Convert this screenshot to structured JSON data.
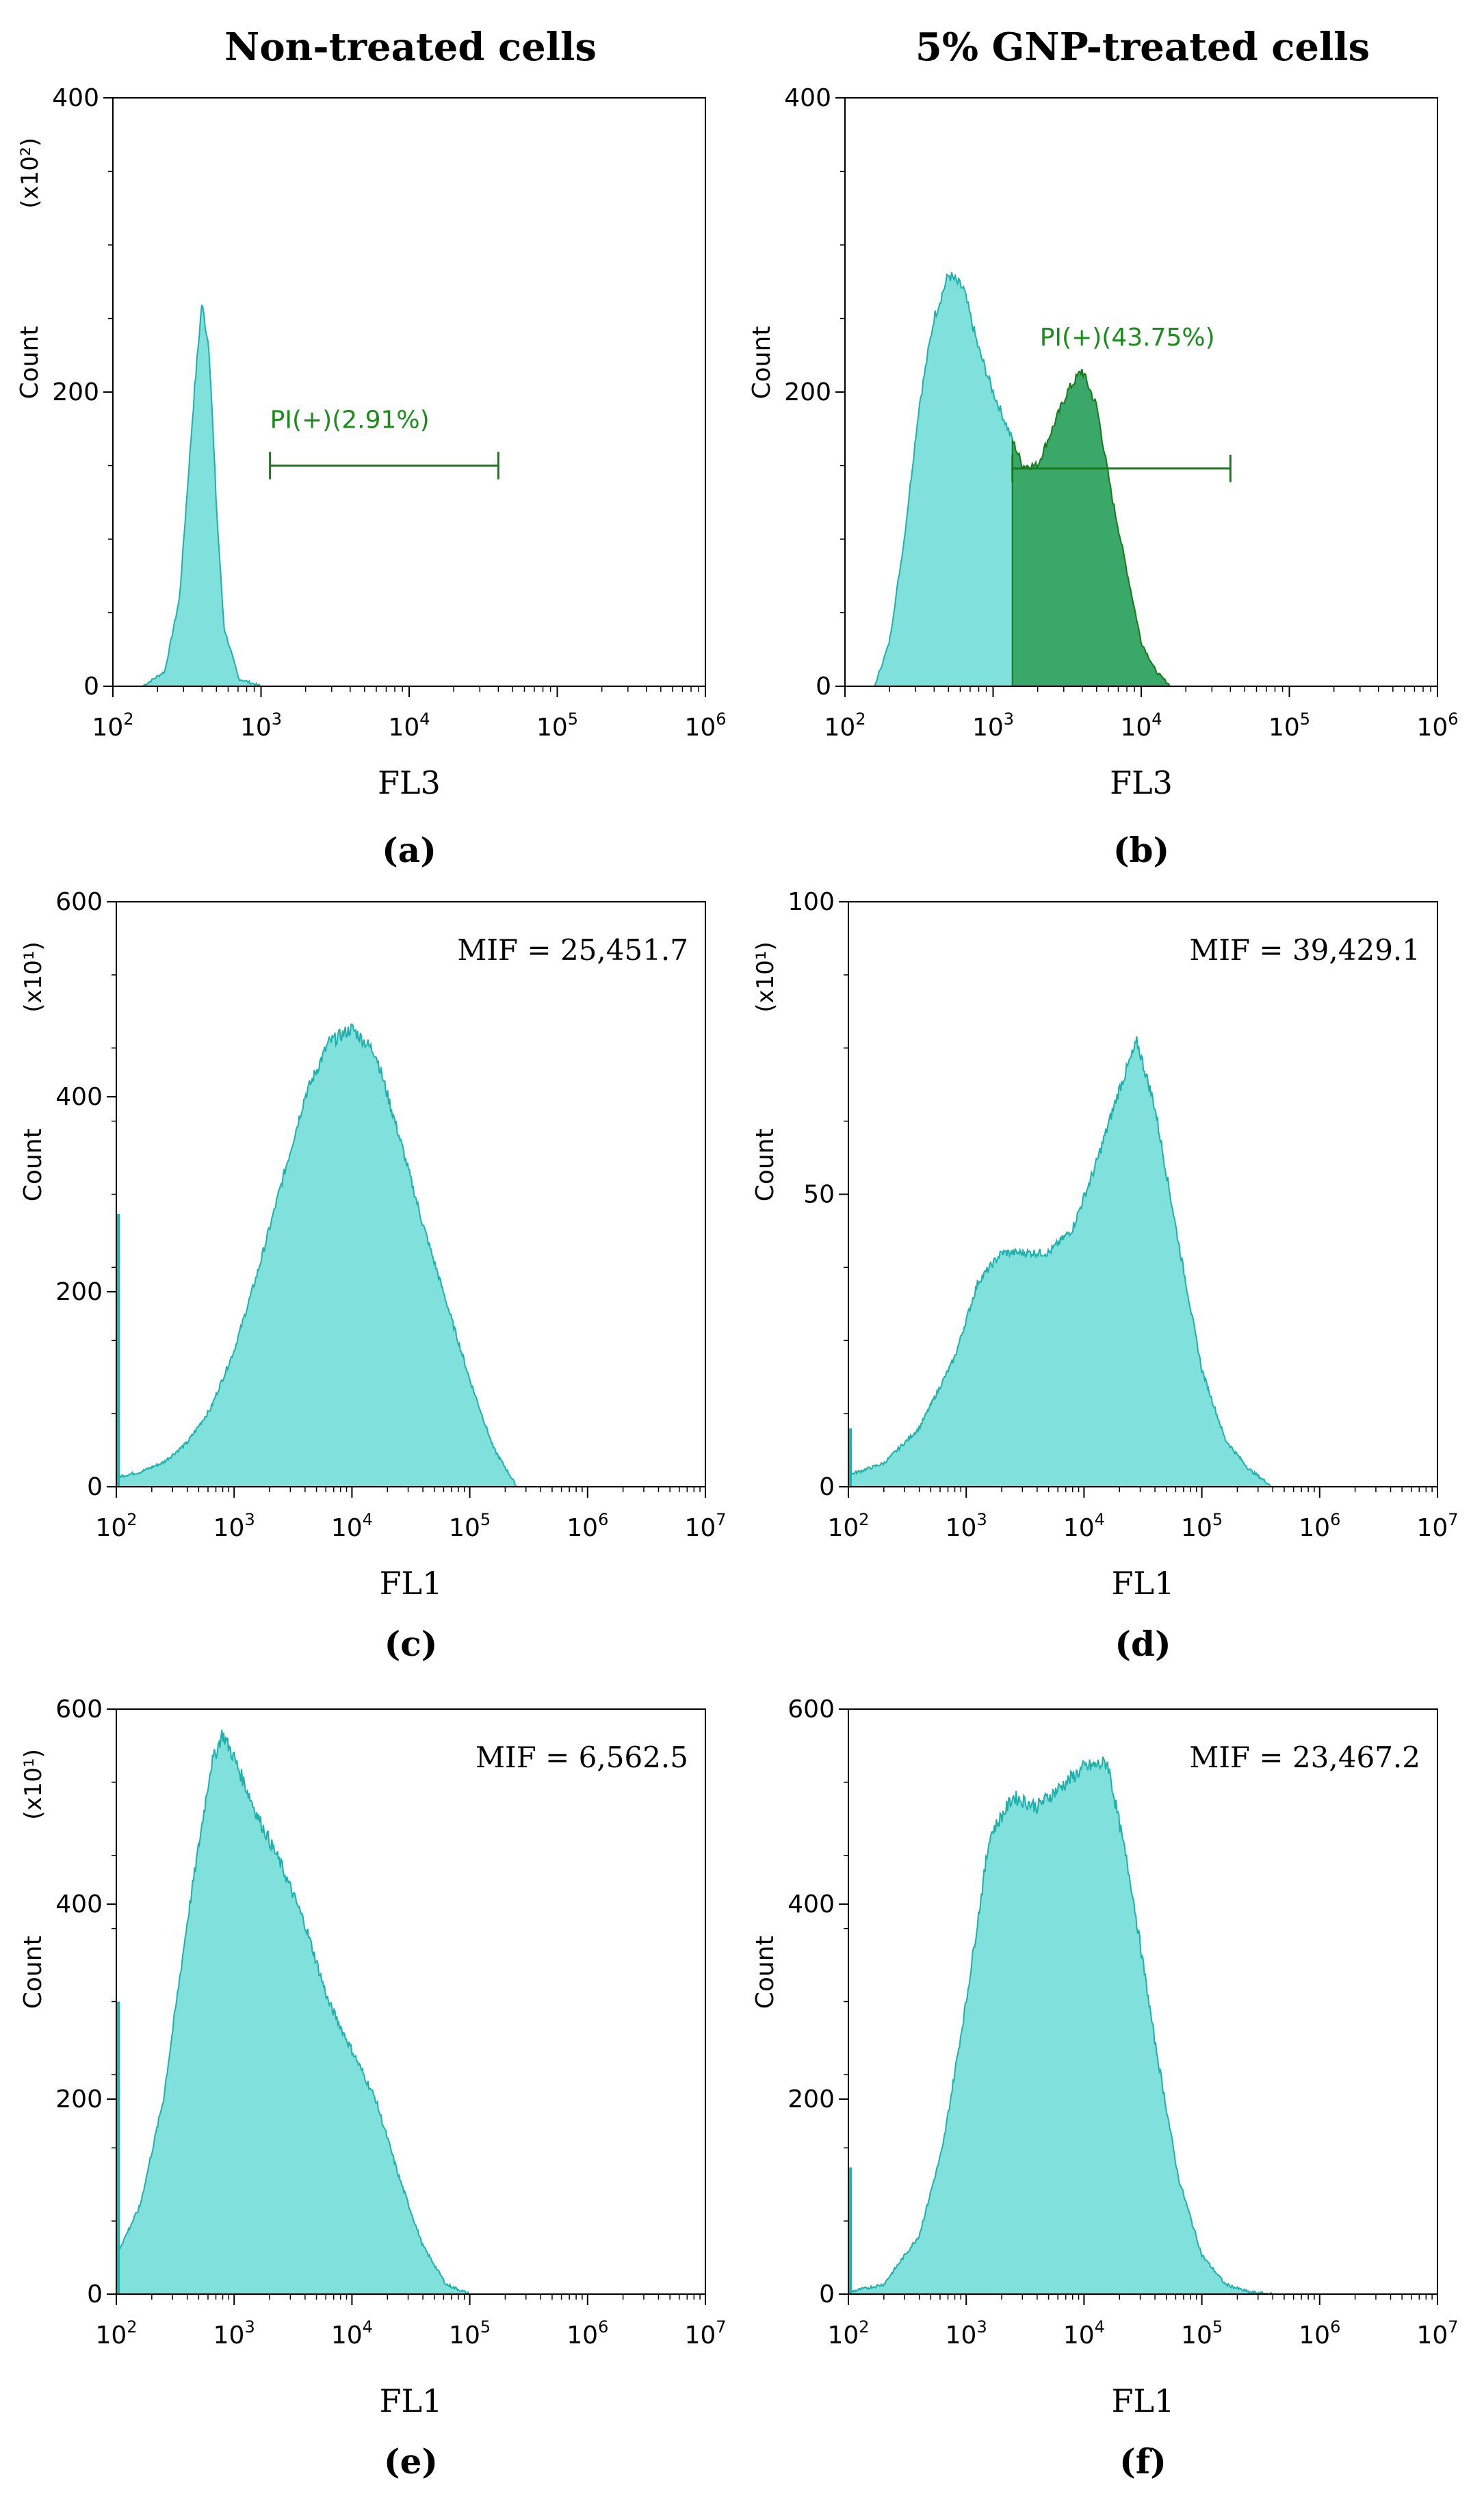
{
  "column_titles": {
    "left": "Non-treated cells",
    "right": "5% GNP-treated cells"
  },
  "colors": {
    "fill": "#7fe0dc",
    "stroke": "#1fb0ac",
    "gate_fill": "#3aa869",
    "gate_stroke": "#1a7a1a",
    "gate_text": "#1a8c1a"
  },
  "chart_data": [
    {
      "id": "a",
      "type": "area",
      "panel_label": "(a)",
      "xlabel": "FL3",
      "ylabel": "Count",
      "scale_label": "(x10²)",
      "x_log": true,
      "x_decades": [
        2,
        3,
        4,
        5,
        6
      ],
      "xlim": [
        100,
        1000000
      ],
      "ylim": [
        0,
        400
      ],
      "y_ticks": [
        0,
        200,
        400
      ],
      "y_tick_labels": [
        "0",
        "200",
        "400"
      ],
      "histogram": {
        "log10_x": [
          2.2,
          2.35,
          2.45,
          2.55,
          2.6,
          2.65,
          2.7,
          2.75,
          2.85,
          3.0
        ],
        "count": [
          0,
          10,
          60,
          200,
          260,
          230,
          120,
          40,
          5,
          0
        ]
      },
      "gate": {
        "label": "PI(+)(2.91%)",
        "x_start": 1150,
        "x_end": 40000,
        "y": 150
      }
    },
    {
      "id": "b",
      "type": "area",
      "panel_label": "(b)",
      "xlabel": "FL3",
      "ylabel": "Count",
      "scale_label": "",
      "x_log": true,
      "x_decades": [
        2,
        3,
        4,
        5,
        6
      ],
      "xlim": [
        100,
        1000000
      ],
      "ylim": [
        0,
        400
      ],
      "y_ticks": [
        0,
        200,
        400
      ],
      "y_tick_labels": [
        "0",
        "200",
        "400"
      ],
      "histogram": {
        "log10_x": [
          2.2,
          2.3,
          2.4,
          2.5,
          2.6,
          2.7,
          2.8,
          2.9,
          3.0,
          3.1,
          3.2,
          3.3,
          3.4,
          3.5,
          3.6,
          3.7,
          3.8,
          3.9,
          4.0,
          4.1,
          4.2
        ],
        "count": [
          0,
          30,
          100,
          190,
          250,
          280,
          270,
          230,
          200,
          175,
          150,
          150,
          175,
          200,
          215,
          190,
          130,
          80,
          30,
          10,
          0
        ]
      },
      "gate": {
        "label": "PI(+)(43.75%)",
        "x_start": 1350,
        "x_end": 40000,
        "y": 148,
        "shade_from": 1350
      }
    },
    {
      "id": "c",
      "type": "area",
      "panel_label": "(c)",
      "xlabel": "FL1",
      "ylabel": "Count",
      "scale_label": "(x10¹)",
      "x_log": true,
      "x_decades": [
        2,
        3,
        4,
        5,
        6,
        7
      ],
      "xlim": [
        100,
        10000000
      ],
      "ylim": [
        0,
        600
      ],
      "y_ticks": [
        0,
        200,
        400,
        600
      ],
      "y_tick_labels": [
        "0",
        "200",
        "400",
        "600"
      ],
      "spike": 280,
      "histogram": {
        "log10_x": [
          2.0,
          2.2,
          2.4,
          2.6,
          2.8,
          3.0,
          3.2,
          3.4,
          3.6,
          3.8,
          4.0,
          4.2,
          4.4,
          4.6,
          4.8,
          5.0,
          5.2,
          5.4
        ],
        "count": [
          10,
          15,
          25,
          45,
          80,
          140,
          220,
          310,
          400,
          455,
          470,
          445,
          360,
          270,
          190,
          110,
          40,
          0
        ]
      },
      "annotation": "MIF = 25,451.7"
    },
    {
      "id": "d",
      "type": "area",
      "panel_label": "(d)",
      "xlabel": "FL1",
      "ylabel": "Count",
      "scale_label": "(x10¹)",
      "x_log": true,
      "x_decades": [
        2,
        3,
        4,
        5,
        6,
        7
      ],
      "xlim": [
        100,
        10000000
      ],
      "ylim": [
        0,
        100
      ],
      "y_ticks": [
        0,
        50,
        100
      ],
      "y_tick_labels": [
        "0",
        "50",
        "100"
      ],
      "spike": 10,
      "histogram": {
        "log10_x": [
          2.0,
          2.3,
          2.6,
          2.9,
          3.1,
          3.3,
          3.5,
          3.7,
          3.9,
          4.1,
          4.3,
          4.45,
          4.6,
          4.8,
          5.0,
          5.2,
          5.4,
          5.6
        ],
        "count": [
          2,
          4,
          10,
          22,
          35,
          40,
          40,
          40,
          44,
          55,
          68,
          76,
          65,
          42,
          20,
          8,
          3,
          0
        ]
      },
      "annotation": "MIF = 39,429.1"
    },
    {
      "id": "e",
      "type": "area",
      "panel_label": "(e)",
      "xlabel": "FL1",
      "ylabel": "Count",
      "scale_label": "(x10¹)",
      "x_log": true,
      "x_decades": [
        2,
        3,
        4,
        5,
        6,
        7
      ],
      "xlim": [
        100,
        10000000
      ],
      "ylim": [
        0,
        600
      ],
      "y_ticks": [
        0,
        200,
        400,
        600
      ],
      "y_tick_labels": [
        "0",
        "200",
        "400",
        "600"
      ],
      "spike": 300,
      "histogram": {
        "log10_x": [
          2.0,
          2.2,
          2.4,
          2.6,
          2.8,
          2.9,
          3.0,
          3.2,
          3.4,
          3.6,
          3.8,
          4.0,
          4.2,
          4.4,
          4.6,
          4.8,
          5.0
        ],
        "count": [
          40,
          90,
          200,
          380,
          540,
          575,
          550,
          490,
          440,
          380,
          300,
          250,
          200,
          120,
          50,
          10,
          0
        ]
      },
      "annotation": "MIF = 6,562.5"
    },
    {
      "id": "f",
      "type": "area",
      "panel_label": "(f)",
      "xlabel": "FL1",
      "ylabel": "Count",
      "scale_label": "",
      "x_log": true,
      "x_decades": [
        2,
        3,
        4,
        5,
        6,
        7
      ],
      "xlim": [
        100,
        10000000
      ],
      "ylim": [
        0,
        600
      ],
      "y_ticks": [
        0,
        200,
        400,
        600
      ],
      "y_tick_labels": [
        "0",
        "200",
        "400",
        "600"
      ],
      "spike": 130,
      "histogram": {
        "log10_x": [
          2.0,
          2.3,
          2.6,
          2.8,
          3.0,
          3.2,
          3.4,
          3.6,
          3.8,
          4.0,
          4.2,
          4.4,
          4.6,
          4.8,
          5.0,
          5.2,
          5.4,
          5.6
        ],
        "count": [
          2,
          10,
          60,
          150,
          300,
          470,
          510,
          500,
          520,
          540,
          545,
          420,
          260,
          120,
          40,
          10,
          2,
          0
        ]
      },
      "annotation": "MIF = 23,467.2"
    }
  ]
}
